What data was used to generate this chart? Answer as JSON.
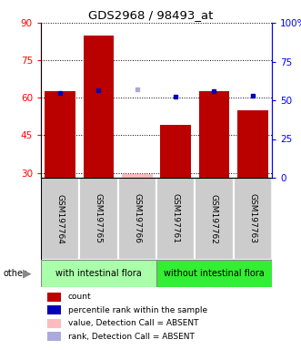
{
  "title": "GDS2968 / 98493_at",
  "samples": [
    "GSM197764",
    "GSM197765",
    "GSM197766",
    "GSM197761",
    "GSM197762",
    "GSM197763"
  ],
  "bar_heights": [
    62.5,
    85.0,
    29.5,
    49.0,
    62.5,
    55.0
  ],
  "bar_colors": [
    "#bb0000",
    "#bb0000",
    "#ffbbbb",
    "#bb0000",
    "#bb0000",
    "#bb0000"
  ],
  "dot_values": [
    62.0,
    63.0,
    null,
    60.5,
    62.5,
    61.0
  ],
  "dot_colors": [
    "#0000bb",
    "#0000bb",
    null,
    "#0000bb",
    "#0000bb",
    "#0000bb"
  ],
  "absent_dot_values": [
    null,
    null,
    63.5,
    null,
    null,
    null
  ],
  "absent_dot_colors": [
    null,
    null,
    "#aaaadd",
    null,
    null,
    null
  ],
  "ylim_left": [
    28,
    90
  ],
  "ylim_right": [
    0,
    100
  ],
  "yticks_left": [
    30,
    45,
    60,
    75,
    90
  ],
  "yticks_right": [
    0,
    25,
    50,
    75,
    100
  ],
  "ytick_labels_left": [
    "30",
    "45",
    "60",
    "75",
    "90"
  ],
  "ytick_labels_right": [
    "0",
    "25",
    "50",
    "75",
    "100%"
  ],
  "group1_label": "with intestinal flora",
  "group2_label": "without intestinal flora",
  "group1_indices": [
    0,
    1,
    2
  ],
  "group2_indices": [
    3,
    4,
    5
  ],
  "group1_color": "#aaffaa",
  "group2_color": "#33ee33",
  "legend_items": [
    {
      "label": "count",
      "color": "#bb0000"
    },
    {
      "label": "percentile rank within the sample",
      "color": "#0000bb"
    },
    {
      "label": "value, Detection Call = ABSENT",
      "color": "#ffbbbb"
    },
    {
      "label": "rank, Detection Call = ABSENT",
      "color": "#aaaadd"
    }
  ],
  "bar_bottom": 28,
  "bar_width": 0.8
}
